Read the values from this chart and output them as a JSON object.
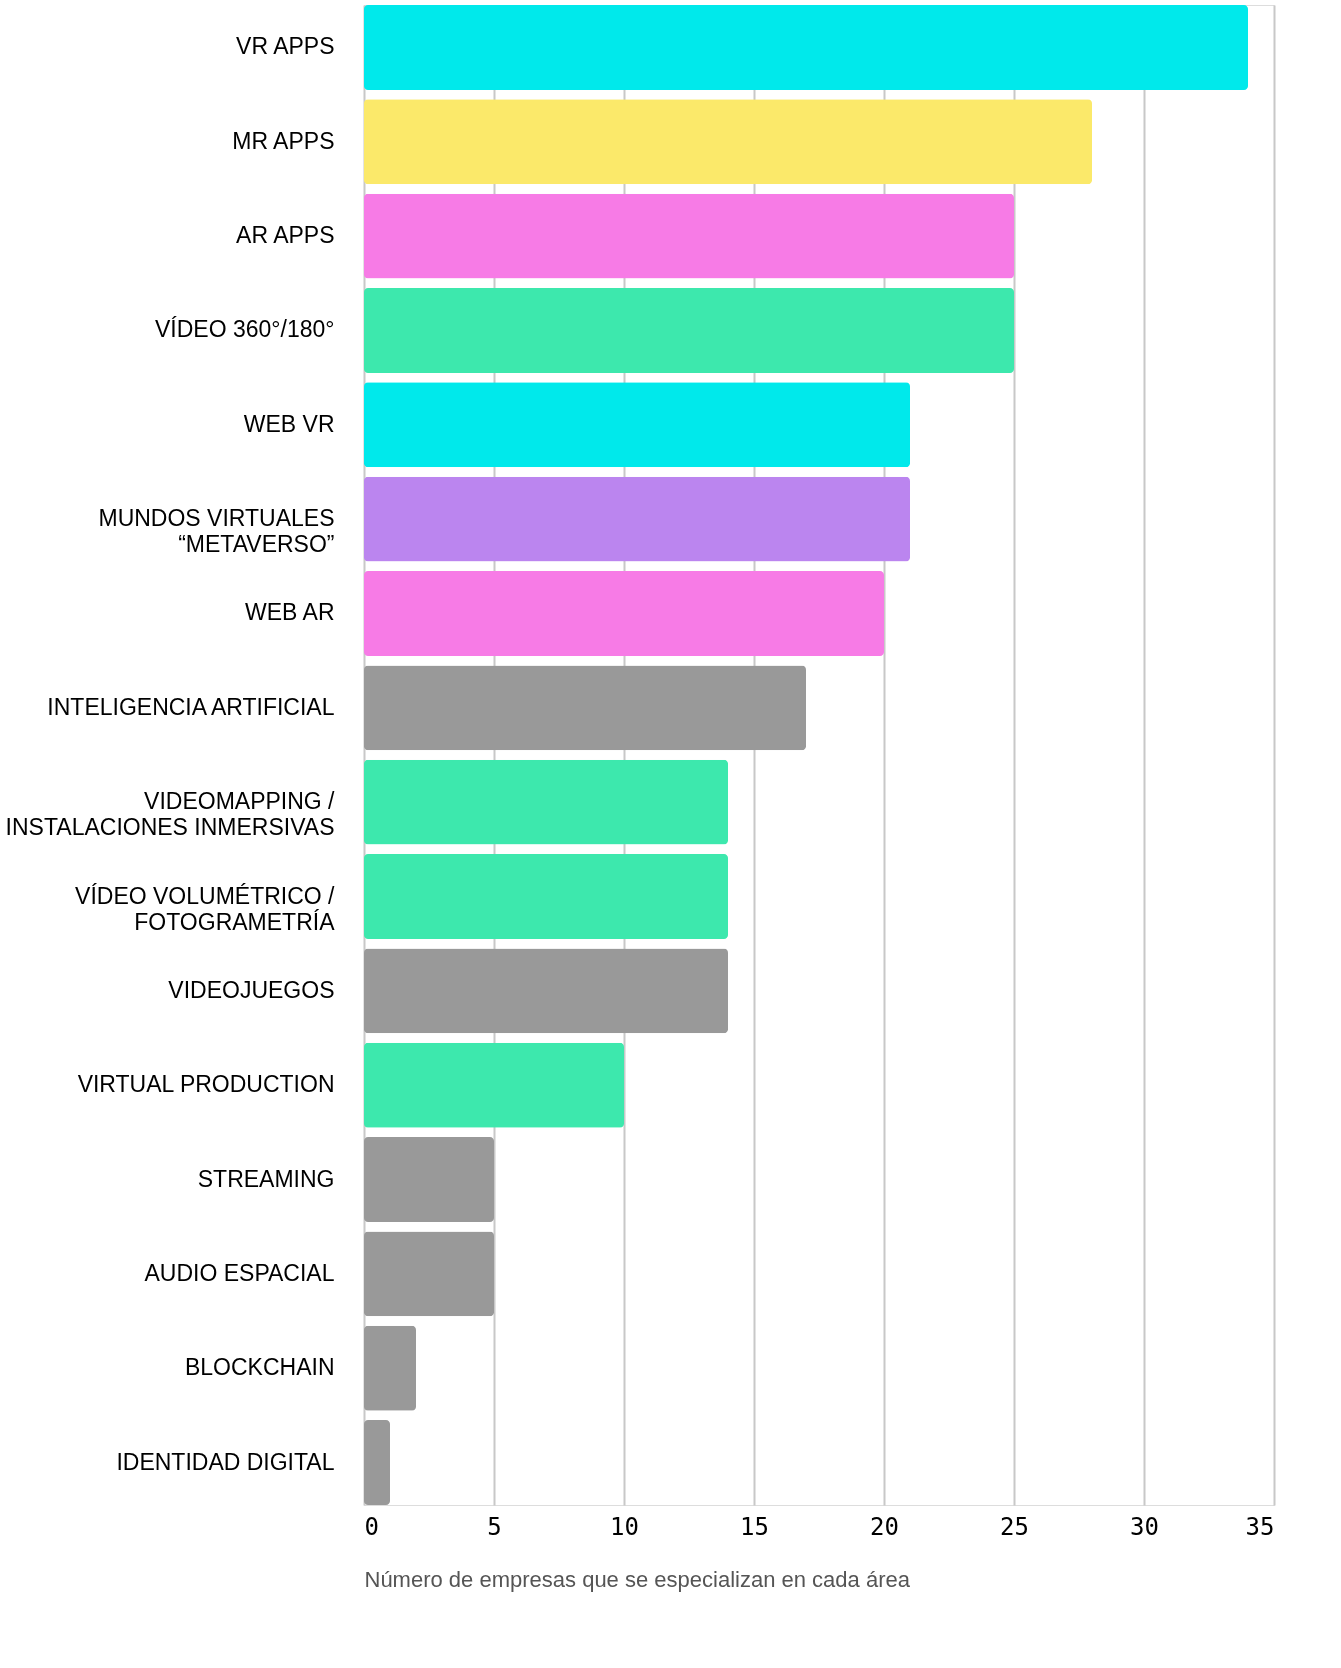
{
  "chart_data": {
    "type": "bar",
    "orientation": "horizontal",
    "xlabel": "Número de empresas que se especializan en cada área",
    "categories": [
      "VR APPS",
      "MR APPS",
      "AR APPS",
      "VÍDEO 360°/180°",
      "WEB VR",
      "MUNDOS VIRTUALES\n“METAVERSO”",
      "WEB AR",
      "INTELIGENCIA ARTIFICIAL",
      "VIDEOMAPPING /\nINSTALACIONES INMERSIVAS",
      "VÍDEO VOLUMÉTRICO /\nFOTOGRAMETRÍA",
      "VIDEOJUEGOS",
      "VIRTUAL PRODUCTION",
      "STREAMING",
      "AUDIO ESPACIAL",
      "BLOCKCHAIN",
      "IDENTIDAD DIGITAL"
    ],
    "values": [
      34,
      28,
      25,
      25,
      21,
      21,
      20,
      17,
      14,
      14,
      14,
      10,
      5,
      5,
      2,
      1
    ],
    "colors": [
      "#00e9eb",
      "#fbe96a",
      "#f77be6",
      "#3de8ad",
      "#00e9eb",
      "#bb85ef",
      "#f77be6",
      "#999999",
      "#3de8ad",
      "#3de8ad",
      "#999999",
      "#3de8ad",
      "#999999",
      "#999999",
      "#999999",
      "#999999"
    ],
    "xlim": [
      0,
      35
    ],
    "xticks": [
      0,
      5,
      10,
      15,
      20,
      25,
      30,
      35
    ],
    "grid": "x",
    "legend": false
  }
}
